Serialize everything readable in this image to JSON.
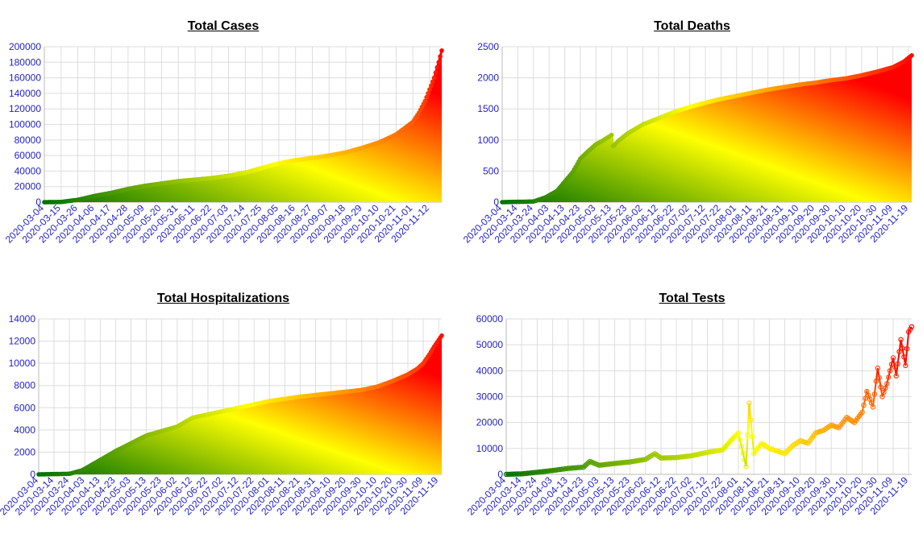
{
  "colors": {
    "axis_label": "#2222cc",
    "grid": "#dddddd",
    "gradient": [
      "#007000",
      "#ffff00",
      "#ff0000"
    ]
  },
  "chart_data": [
    {
      "type": "area",
      "title": "Total Cases",
      "xlabel": "",
      "ylabel": "",
      "ylim": [
        0,
        200000
      ],
      "yticks": [
        0,
        20000,
        40000,
        60000,
        80000,
        100000,
        120000,
        140000,
        160000,
        180000,
        200000
      ],
      "xticks": [
        "2020-03-04",
        "2020-03-15",
        "2020-03-26",
        "2020-04-06",
        "2020-04-17",
        "2020-04-28",
        "2020-05-09",
        "2020-05-20",
        "2020-05-31",
        "2020-06-11",
        "2020-06-22",
        "2020-07-03",
        "2020-07-14",
        "2020-07-25",
        "2020-08-05",
        "2020-08-16",
        "2020-08-27",
        "2020-09-07",
        "2020-09-18",
        "2020-09-29",
        "2020-10-10",
        "2020-10-21",
        "2020-11-01",
        "2020-11-12"
      ],
      "x_start": "2020-03-04",
      "x_end": "2020-11-20",
      "grid": true,
      "legend": "none",
      "series": [
        {
          "x": [
            "2020-03-04",
            "2020-03-15",
            "2020-03-26",
            "2020-04-06",
            "2020-04-17",
            "2020-04-28",
            "2020-05-09",
            "2020-05-20",
            "2020-05-31",
            "2020-06-11",
            "2020-06-22",
            "2020-07-03",
            "2020-07-14",
            "2020-07-25",
            "2020-08-05",
            "2020-08-16",
            "2020-08-27",
            "2020-09-07",
            "2020-09-18",
            "2020-09-29",
            "2020-10-10",
            "2020-10-21",
            "2020-11-01",
            "2020-11-05",
            "2020-11-09",
            "2020-11-12",
            "2020-11-15",
            "2020-11-18",
            "2020-11-20"
          ],
          "values": [
            0,
            200,
            3000,
            8000,
            12000,
            17000,
            21000,
            24000,
            27000,
            29000,
            31000,
            34000,
            38000,
            44000,
            50000,
            54000,
            57000,
            60000,
            64000,
            70000,
            77000,
            87000,
            103000,
            115000,
            130000,
            145000,
            160000,
            180000,
            195000
          ]
        }
      ]
    },
    {
      "type": "area",
      "title": "Total Deaths",
      "xlabel": "",
      "ylabel": "",
      "ylim": [
        0,
        2500
      ],
      "yticks": [
        0,
        500,
        1000,
        1500,
        2000,
        2500
      ],
      "xticks": [
        "2020-03-04",
        "2020-03-14",
        "2020-03-24",
        "2020-04-03",
        "2020-04-13",
        "2020-04-23",
        "2020-05-03",
        "2020-05-13",
        "2020-05-23",
        "2020-06-02",
        "2020-06-12",
        "2020-06-22",
        "2020-07-02",
        "2020-07-12",
        "2020-07-22",
        "2020-08-01",
        "2020-08-11",
        "2020-08-21",
        "2020-08-31",
        "2020-09-10",
        "2020-09-20",
        "2020-09-30",
        "2020-10-10",
        "2020-10-20",
        "2020-10-30",
        "2020-11-09",
        "2020-11-19"
      ],
      "x_start": "2020-03-04",
      "x_end": "2020-11-21",
      "grid": true,
      "legend": "none",
      "series": [
        {
          "x": [
            "2020-03-04",
            "2020-03-24",
            "2020-04-01",
            "2020-04-08",
            "2020-04-13",
            "2020-04-18",
            "2020-04-23",
            "2020-04-28",
            "2020-05-03",
            "2020-05-08",
            "2020-05-13",
            "2020-05-14",
            "2020-05-18",
            "2020-05-23",
            "2020-06-02",
            "2020-06-12",
            "2020-06-22",
            "2020-07-02",
            "2020-07-12",
            "2020-07-22",
            "2020-08-01",
            "2020-08-11",
            "2020-08-21",
            "2020-08-31",
            "2020-09-10",
            "2020-09-20",
            "2020-09-30",
            "2020-10-10",
            "2020-10-20",
            "2020-10-30",
            "2020-11-09",
            "2020-11-16",
            "2020-11-21"
          ],
          "values": [
            0,
            10,
            80,
            180,
            330,
            480,
            700,
            820,
            930,
            1000,
            1080,
            900,
            1000,
            1100,
            1250,
            1350,
            1450,
            1530,
            1600,
            1660,
            1710,
            1760,
            1810,
            1850,
            1890,
            1920,
            1960,
            1990,
            2040,
            2100,
            2170,
            2260,
            2360
          ]
        }
      ]
    },
    {
      "type": "area",
      "title": "Total Hospitalizations",
      "xlabel": "",
      "ylabel": "",
      "ylim": [
        0,
        14000
      ],
      "yticks": [
        0,
        2000,
        4000,
        6000,
        8000,
        10000,
        12000,
        14000
      ],
      "xticks": [
        "2020-03-04",
        "2020-03-14",
        "2020-03-24",
        "2020-04-03",
        "2020-04-13",
        "2020-04-23",
        "2020-05-03",
        "2020-05-13",
        "2020-05-23",
        "2020-06-02",
        "2020-06-12",
        "2020-06-22",
        "2020-07-02",
        "2020-07-12",
        "2020-07-22",
        "2020-08-01",
        "2020-08-11",
        "2020-08-21",
        "2020-08-31",
        "2020-09-10",
        "2020-09-20",
        "2020-09-30",
        "2020-10-10",
        "2020-10-20",
        "2020-10-30",
        "2020-11-09",
        "2020-11-19"
      ],
      "x_start": "2020-03-04",
      "x_end": "2020-11-21",
      "grid": true,
      "legend": "none",
      "series": [
        {
          "x": [
            "2020-03-04",
            "2020-03-24",
            "2020-04-01",
            "2020-04-08",
            "2020-04-13",
            "2020-04-18",
            "2020-04-23",
            "2020-05-03",
            "2020-05-13",
            "2020-05-23",
            "2020-06-02",
            "2020-06-12",
            "2020-06-22",
            "2020-07-02",
            "2020-07-12",
            "2020-07-22",
            "2020-08-01",
            "2020-08-11",
            "2020-08-21",
            "2020-08-31",
            "2020-09-10",
            "2020-09-20",
            "2020-09-30",
            "2020-10-10",
            "2020-10-20",
            "2020-10-30",
            "2020-11-05",
            "2020-11-09",
            "2020-11-13",
            "2020-11-16",
            "2020-11-21"
          ],
          "values": [
            0,
            50,
            350,
            900,
            1300,
            1700,
            2100,
            2800,
            3500,
            3900,
            4300,
            5100,
            5400,
            5700,
            6000,
            6300,
            6600,
            6800,
            7000,
            7150,
            7300,
            7450,
            7600,
            7900,
            8400,
            9000,
            9500,
            10000,
            10800,
            11500,
            12500
          ]
        }
      ]
    },
    {
      "type": "line",
      "title": "Total Tests",
      "xlabel": "",
      "ylabel": "",
      "ylim": [
        0,
        60000
      ],
      "yticks": [
        0,
        10000,
        20000,
        30000,
        40000,
        50000,
        60000
      ],
      "xticks": [
        "2020-03-04",
        "2020-03-14",
        "2020-03-24",
        "2020-04-03",
        "2020-04-13",
        "2020-04-23",
        "2020-05-03",
        "2020-05-13",
        "2020-05-23",
        "2020-06-02",
        "2020-06-12",
        "2020-06-22",
        "2020-07-02",
        "2020-07-12",
        "2020-07-22",
        "2020-08-01",
        "2020-08-11",
        "2020-08-21",
        "2020-08-31",
        "2020-09-10",
        "2020-09-20",
        "2020-09-30",
        "2020-10-10",
        "2020-10-20",
        "2020-10-30",
        "2020-11-09",
        "2020-11-19"
      ],
      "x_start": "2020-03-04",
      "x_end": "2020-11-21",
      "grid": true,
      "legend": "none",
      "series": [
        {
          "x": [
            "2020-03-04",
            "2020-03-14",
            "2020-03-24",
            "2020-04-03",
            "2020-04-13",
            "2020-04-23",
            "2020-04-27",
            "2020-05-03",
            "2020-05-13",
            "2020-05-23",
            "2020-06-02",
            "2020-06-08",
            "2020-06-12",
            "2020-06-22",
            "2020-07-02",
            "2020-07-12",
            "2020-07-22",
            "2020-07-27",
            "2020-08-01",
            "2020-08-06",
            "2020-08-08",
            "2020-08-11",
            "2020-08-16",
            "2020-08-21",
            "2020-08-26",
            "2020-08-31",
            "2020-09-05",
            "2020-09-10",
            "2020-09-15",
            "2020-09-20",
            "2020-09-25",
            "2020-09-30",
            "2020-10-05",
            "2020-10-10",
            "2020-10-15",
            "2020-10-20",
            "2020-10-23",
            "2020-10-27",
            "2020-10-30",
            "2020-11-02",
            "2020-11-05",
            "2020-11-09",
            "2020-11-11",
            "2020-11-14",
            "2020-11-17",
            "2020-11-19",
            "2020-11-21"
          ],
          "values": [
            0,
            200,
            800,
            1500,
            2300,
            2800,
            5000,
            3500,
            4200,
            4800,
            5800,
            8000,
            6300,
            6500,
            7200,
            8500,
            9500,
            13000,
            16000,
            3000,
            27500,
            8000,
            12000,
            10000,
            9000,
            8000,
            11000,
            13000,
            12000,
            16000,
            17000,
            19000,
            18000,
            22000,
            20000,
            24000,
            32000,
            26000,
            41000,
            30000,
            35000,
            45000,
            38000,
            52000,
            42000,
            55000,
            57000
          ]
        }
      ]
    }
  ]
}
